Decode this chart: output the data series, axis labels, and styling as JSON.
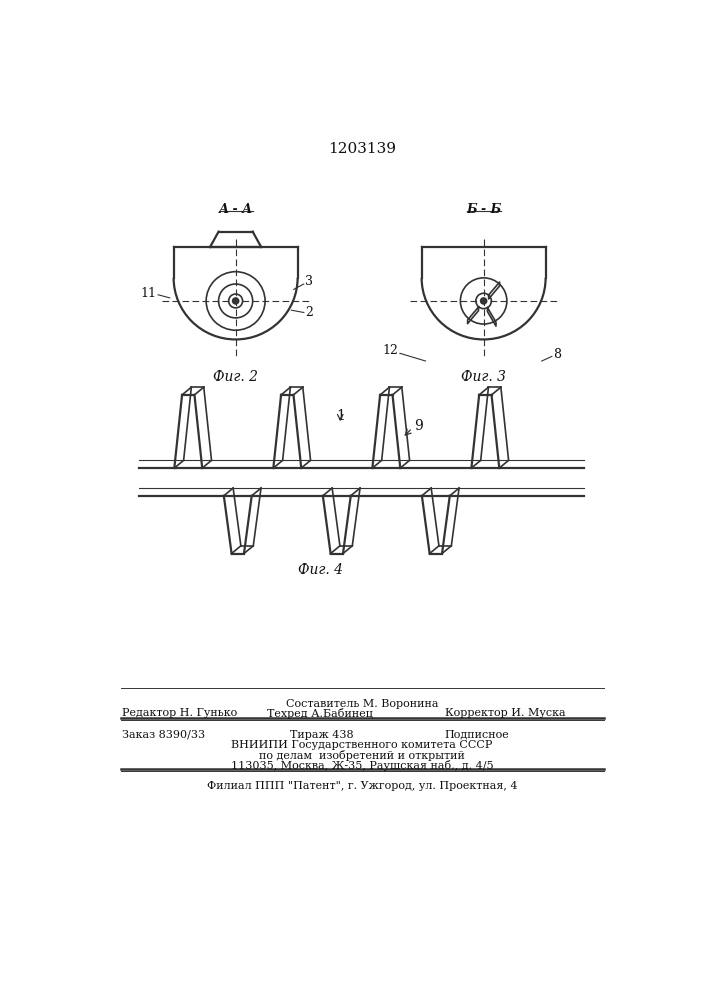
{
  "patent_number": "1203139",
  "bg_color": "#ffffff",
  "fig_color": "#333333",
  "footer_line1": "Составитель М. Воронина",
  "footer_line2_left": "Редактор Н. Гунько",
  "footer_line2_mid": "Техред А.Бабинец",
  "footer_line2_right": "Корректор И. Муска",
  "footer_line3_left": "Заказ 8390/33",
  "footer_line3_mid": "Тираж 438",
  "footer_line3_right": "Подписное",
  "footer_line4": "ВНИИПИ Государственного комитета СССР",
  "footer_line5": "по делам  изобретений и открытий",
  "footer_line6": "113035, Москва, Ж-35, Раушская наб., д. 4/5",
  "footer_line7": "Филиал ППП \"Патент\", г. Ужгород, ул. Проектная, 4",
  "fig2_label": "Фиг. 2",
  "fig3_label": "Фиг. 3",
  "fig4_label": "Фиг. 4",
  "label_AA": "А - А",
  "label_BB": "Б - Б",
  "label_1": "1",
  "label_2": "2",
  "label_3": "3",
  "label_8": "8",
  "label_9": "9",
  "label_11": "11",
  "label_12": "12"
}
